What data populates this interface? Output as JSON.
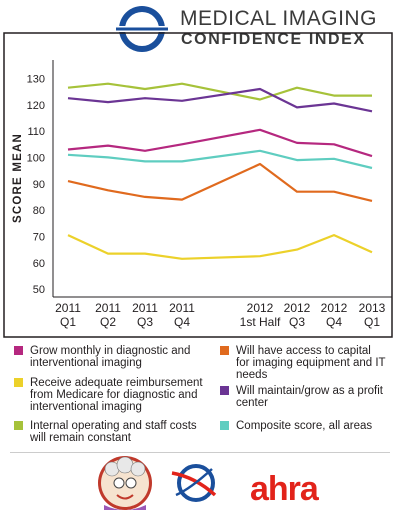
{
  "header": {
    "title_line1": "MEDICAL IMAGING",
    "title_line2": "CONFIDENCE INDEX",
    "logo_icon": "mici-logo-icon"
  },
  "colors": {
    "magenta": "#b5287f",
    "orange": "#e06a1e",
    "yellow": "#ecd12a",
    "purple": "#6b3594",
    "green": "#a6c23a",
    "teal": "#5fcdc0",
    "frame": "#231f20"
  },
  "chart_data": {
    "type": "line",
    "ylabel": "SCORE MEAN",
    "xlabel": "",
    "ylim": [
      47,
      137
    ],
    "yticks": [
      50,
      60,
      70,
      80,
      90,
      100,
      110,
      120,
      130
    ],
    "grid": false,
    "categories": [
      {
        "top": "2011",
        "bottom": "Q1"
      },
      {
        "top": "2011",
        "bottom": "Q2"
      },
      {
        "top": "2011",
        "bottom": "Q3"
      },
      {
        "top": "2011",
        "bottom": "Q4"
      },
      {
        "top": "2012",
        "bottom": "1st Half"
      },
      {
        "top": "2012",
        "bottom": "Q3"
      },
      {
        "top": "2012",
        "bottom": "Q4"
      },
      {
        "top": "2013",
        "bottom": "Q1"
      }
    ],
    "series": [
      {
        "name": "Internal operating and staff costs will remain constant",
        "color": "#a6c23a",
        "values": [
          126.5,
          128,
          126,
          128,
          122,
          126.5,
          123.5,
          123.5
        ]
      },
      {
        "name": "Will maintain/grow as a profit center",
        "color": "#6b3594",
        "values": [
          122.5,
          121,
          122.5,
          121.5,
          126,
          119,
          120.5,
          117.5
        ]
      },
      {
        "name": "Grow monthly in diagnostic and interventional imaging",
        "color": "#b5287f",
        "values": [
          103,
          104.5,
          102.5,
          105,
          110.5,
          105.5,
          105,
          100.5
        ]
      },
      {
        "name": "Composite score, all areas",
        "color": "#5fcdc0",
        "values": [
          101,
          100,
          98.5,
          98.5,
          102.5,
          99,
          99.5,
          96
        ]
      },
      {
        "name": "Will have access to capital for imaging equipment and IT needs",
        "color": "#e06a1e",
        "values": [
          91,
          87.5,
          85,
          84,
          97.5,
          87,
          87,
          83.5
        ]
      },
      {
        "name": "Receive adequate reimbursement from Medicare for diagnostic and interventional imaging",
        "color": "#ecd12a",
        "values": [
          70.5,
          63.5,
          63.5,
          61.5,
          62.5,
          65,
          70.5,
          64
        ]
      }
    ]
  },
  "legend": [
    {
      "label": "Grow monthly in diagnostic and interventional imaging",
      "color": "#b5287f"
    },
    {
      "label": "Will have access to capital for imaging equipment and IT needs",
      "color": "#e06a1e"
    },
    {
      "label": "Receive adequate reimbursement from Medicare for diagnostic and interventional imaging",
      "color": "#ecd12a"
    },
    {
      "label": "Will maintain/grow as a profit center",
      "color": "#6b3594"
    },
    {
      "label": "Internal operating and staff costs will remain constant",
      "color": "#a6c23a"
    },
    {
      "label": "Composite score, all areas",
      "color": "#5fcdc0"
    }
  ],
  "footer": {
    "logo1_icon": "cartoon-mascot-logo-icon",
    "logo2_icon": "swoosh-logo-icon",
    "ahra": "ahra"
  }
}
